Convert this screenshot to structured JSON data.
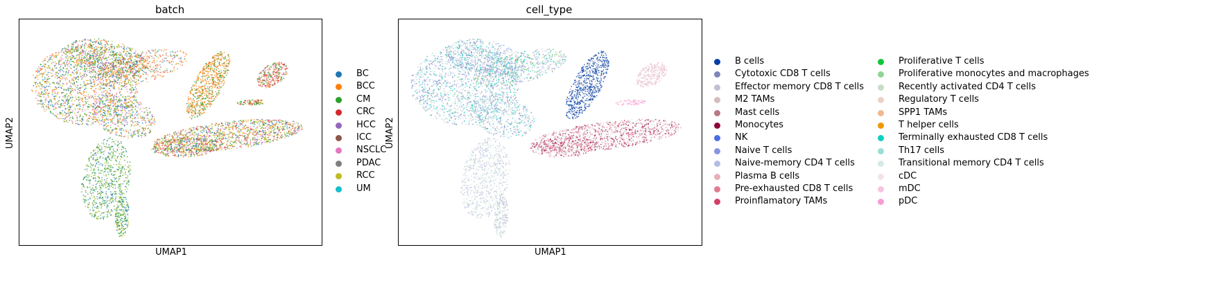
{
  "chart_data": [
    {
      "type": "scatter",
      "title": "batch",
      "xlabel": "UMAP1",
      "ylabel": "UMAP2",
      "grid": false,
      "legend_placement": "right",
      "categories": [
        "BC",
        "BCC",
        "CM",
        "CRC",
        "HCC",
        "ICC",
        "NSCLC",
        "PDAC",
        "RCC",
        "UM"
      ],
      "colors": [
        "#1f77b4",
        "#ff7f0e",
        "#2ca02c",
        "#d62728",
        "#9467bd",
        "#8c564b",
        "#e377c2",
        "#7f7f7f",
        "#bcbd22",
        "#17becf"
      ]
    },
    {
      "type": "scatter",
      "title": "cell_type",
      "xlabel": "UMAP1",
      "ylabel": "UMAP2",
      "grid": false,
      "legend_placement": "right",
      "categories": [
        "B cells",
        "Cytotoxic CD8 T cells",
        "Effector memory CD8 T cells",
        "M2 TAMs",
        "Mast cells",
        "Monocytes",
        "NK",
        "Naive T cells",
        "Naive-memory CD4 T cells",
        "Plasma B cells",
        "Pre-exhausted CD8 T cells",
        "Proinflamatory TAMs",
        "Proliferative T cells",
        "Proliferative monocytes and macrophages",
        "Recently activated CD4 T cells",
        "Regulatory T cells",
        "SPP1 TAMs",
        "T helper cells",
        "Terminally exhausted CD8 T cells",
        "Th17 cells",
        "Transitional memory CD4 T cells",
        "cDC",
        "mDC",
        "pDC"
      ],
      "colors": [
        "#023fa5",
        "#7d87b9",
        "#bec1d4",
        "#d6bcc0",
        "#bb7784",
        "#8e063b",
        "#4a6fe3",
        "#8595e1",
        "#b5bbe3",
        "#e6afb9",
        "#e07b91",
        "#d33f6a",
        "#11c638",
        "#8dd593",
        "#c6dec7",
        "#ead3c6",
        "#f0b98d",
        "#ef9708",
        "#0fcfc0",
        "#9cded6",
        "#d5eae7",
        "#f3e1eb",
        "#f6c4e1",
        "#f79cd4"
      ]
    }
  ]
}
